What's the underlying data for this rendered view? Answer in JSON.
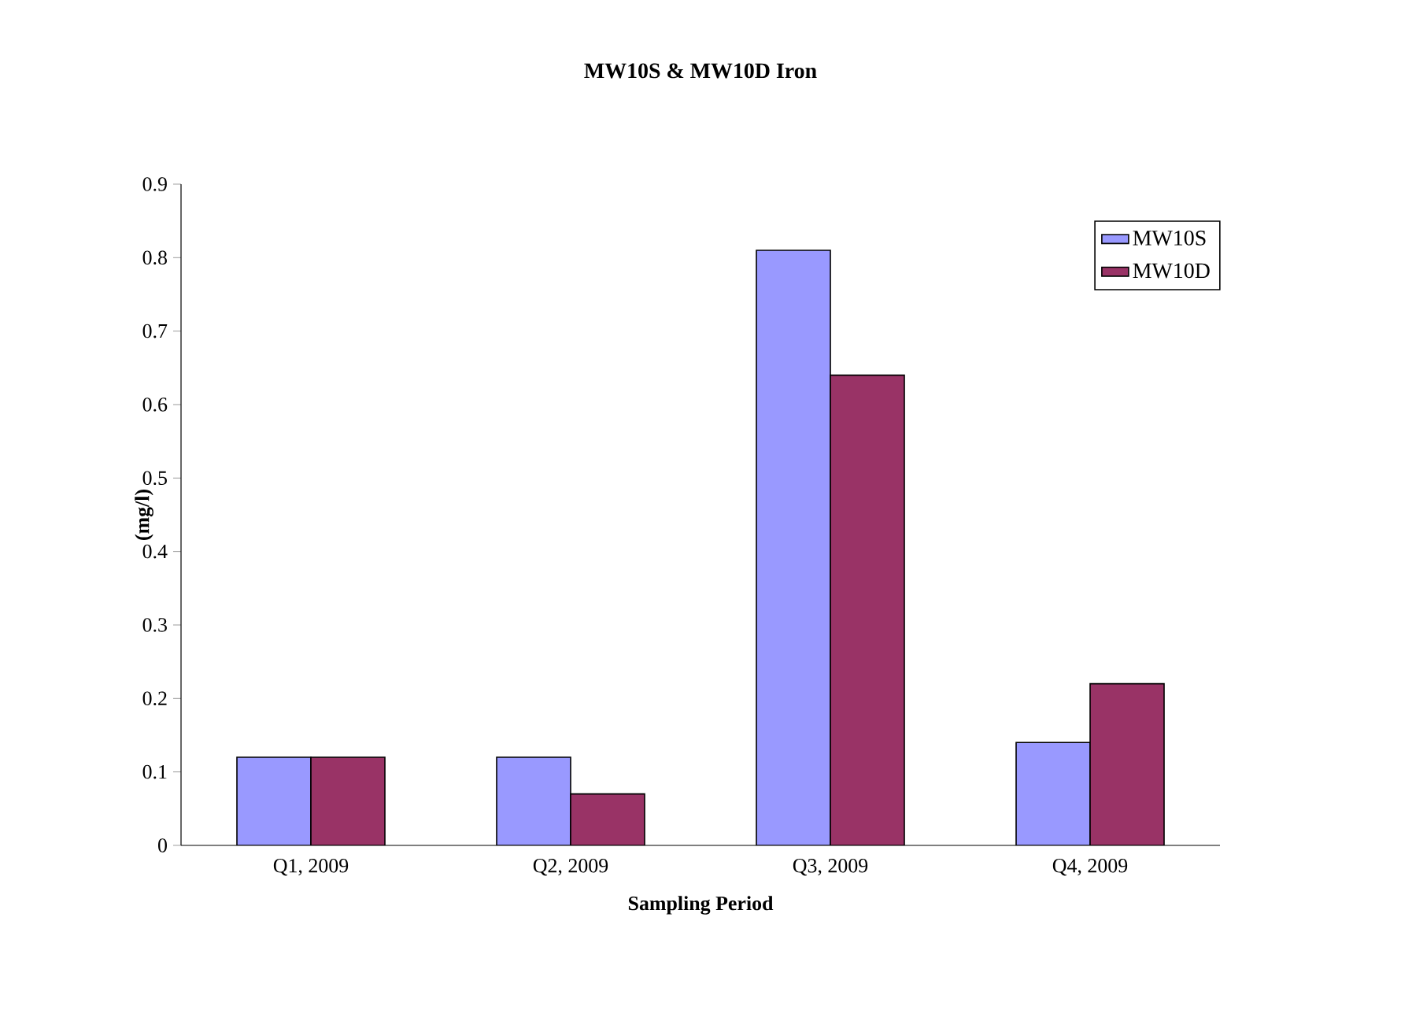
{
  "chart_data": {
    "type": "bar",
    "title": "MW10S & MW10D Iron",
    "xlabel": "Sampling Period",
    "ylabel": "(mg/l)",
    "categories": [
      "Q1, 2009",
      "Q2, 2009",
      "Q3, 2009",
      "Q4, 2009"
    ],
    "series": [
      {
        "name": "MW10S",
        "color": "#9999ff",
        "values": [
          0.12,
          0.12,
          0.81,
          0.14
        ]
      },
      {
        "name": "MW10D",
        "color": "#993366",
        "values": [
          0.12,
          0.07,
          0.64,
          0.22
        ]
      }
    ],
    "ylim": [
      0,
      0.9
    ],
    "yticks": [
      0,
      0.1,
      0.2,
      0.3,
      0.4,
      0.5,
      0.6,
      0.7,
      0.8,
      0.9
    ],
    "grid": false,
    "legend": "top right"
  }
}
